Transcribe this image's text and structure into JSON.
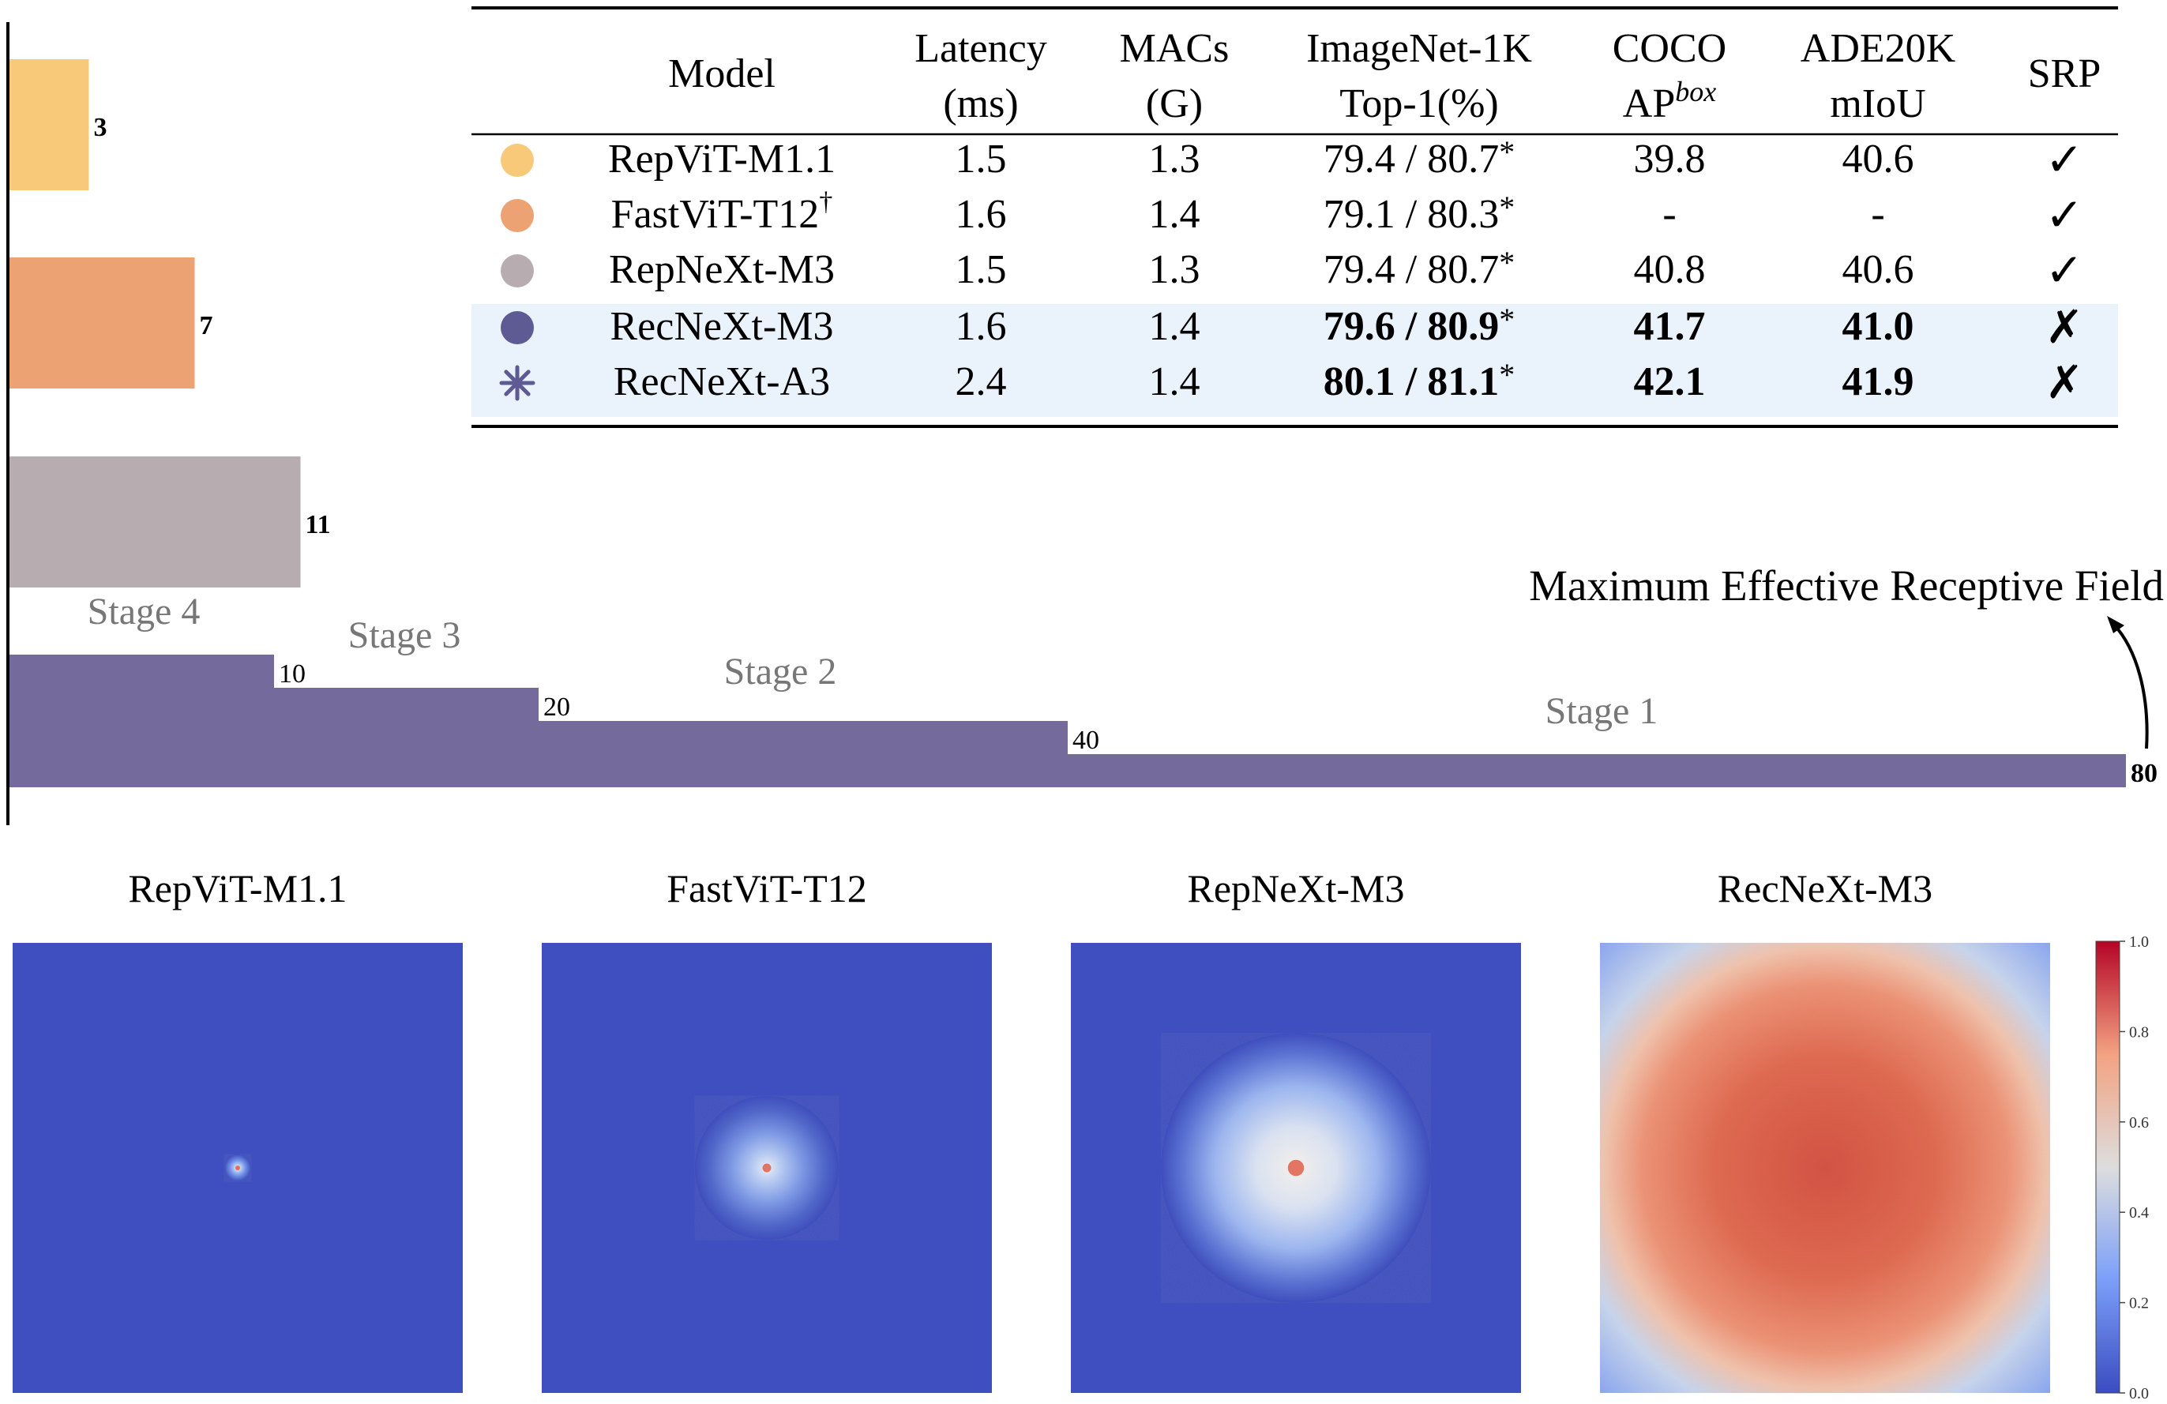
{
  "chart_data": [
    {
      "type": "bar",
      "orientation": "horizontal",
      "categories": [
        "RepViT-M1.1",
        "FastViT-T12",
        "RepNeXt-M3"
      ],
      "values": [
        3,
        7,
        11
      ],
      "colors": [
        "#F8C979",
        "#EDA273",
        "#B7ADB0"
      ]
    },
    {
      "type": "bar",
      "orientation": "horizontal",
      "stacked_staircase": true,
      "annotation": "Maximum Effective Receptive Field",
      "stages": [
        "Stage 4",
        "Stage 3",
        "Stage 2",
        "Stage 1"
      ],
      "values": [
        10,
        20,
        40,
        80
      ],
      "value_labels": [
        "10",
        "20",
        "40",
        "80"
      ],
      "color": "#746A9C",
      "xlim": [
        0,
        80
      ]
    },
    {
      "type": "table",
      "header_row1": [
        "Model",
        "Latency",
        "MACs",
        "ImageNet-1K",
        "COCO",
        "ADE20K",
        "SRP"
      ],
      "header_row2": [
        "",
        "(ms)",
        "(G)",
        "Top-1(%)",
        "AP",
        "mIoU",
        ""
      ],
      "coco_superscript": "box",
      "rows": [
        {
          "marker": "circle",
          "color": "#F8C979",
          "model": "RepViT-M1.1",
          "sup": "",
          "latency": "1.5",
          "macs": "1.3",
          "top1": "79.4 / 80.7",
          "star": "*",
          "coco": "39.8",
          "ade": "40.6",
          "srp": "✓",
          "bold": false,
          "highlight": false
        },
        {
          "marker": "circle",
          "color": "#EDA273",
          "model": "FastViT-T12",
          "sup": "†",
          "latency": "1.6",
          "macs": "1.4",
          "top1": "79.1 / 80.3",
          "star": "*",
          "coco": "-",
          "ade": "-",
          "srp": "✓",
          "bold": false,
          "highlight": false
        },
        {
          "marker": "circle",
          "color": "#B7ADB0",
          "model": "RepNeXt-M3",
          "sup": "",
          "latency": "1.5",
          "macs": "1.3",
          "top1": "79.4 / 80.7",
          "star": "*",
          "coco": "40.8",
          "ade": "40.6",
          "srp": "✓",
          "bold": false,
          "highlight": false
        },
        {
          "marker": "circle",
          "color": "#5E5A93",
          "model": "RecNeXt-M3",
          "sup": "",
          "latency": "1.6",
          "macs": "1.4",
          "top1": "79.6 / 80.9",
          "star": "*",
          "coco": "41.7",
          "ade": "41.0",
          "srp": "✗",
          "bold": true,
          "highlight": true
        },
        {
          "marker": "asterisk",
          "color": "#5E5A93",
          "model": "RecNeXt-A3",
          "sup": "",
          "latency": "2.4",
          "macs": "1.4",
          "top1": "80.1 / 81.1",
          "star": "*",
          "coco": "42.1",
          "ade": "41.9",
          "srp": "✗",
          "bold": true,
          "highlight": true
        }
      ]
    },
    {
      "type": "heatmap",
      "panels": [
        {
          "title": "RepViT-M1.1",
          "spread": 0.03
        },
        {
          "title": "FastViT-T12",
          "spread": 0.16
        },
        {
          "title": "RepNeXt-M3",
          "spread": 0.3
        },
        {
          "title": "RecNeXt-M3",
          "spread": 1.0
        }
      ],
      "colormap": "coolwarm",
      "colorbar_ticks": [
        "0.0",
        "0.2",
        "0.4",
        "0.6",
        "0.8",
        "1.0"
      ],
      "colorbar_range": [
        0,
        1
      ]
    }
  ]
}
